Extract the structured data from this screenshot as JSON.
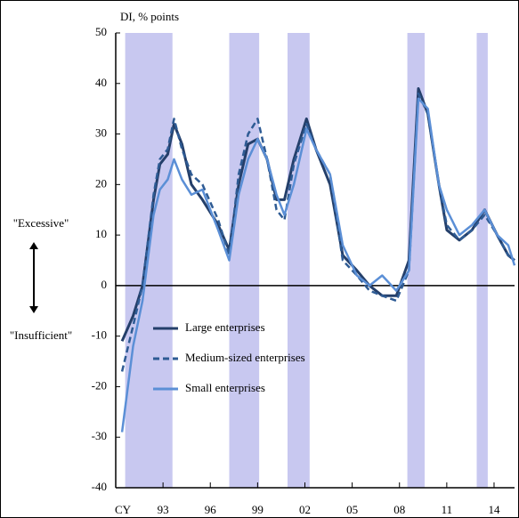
{
  "chart_data": {
    "type": "line",
    "y_label": "DI, % points",
    "x_label": "CY",
    "upper_note": "\"Excessive\"",
    "lower_note": "\"Insufficient\"",
    "x": [
      1990.4,
      1991.1,
      1991.7,
      1992.4,
      1992.8,
      1993.3,
      1993.7,
      1994.2,
      1994.8,
      1995.5,
      1996.5,
      1997.2,
      1997.8,
      1998.4,
      1999.0,
      1999.6,
      2000.2,
      2000.7,
      2001.3,
      2002.1,
      2002.7,
      2003.6,
      2004.4,
      2005.3,
      2006.1,
      2006.9,
      2007.8,
      2008.6,
      2009.2,
      2009.8,
      2010.5,
      2011.0,
      2011.8,
      2012.6,
      2013.4,
      2014.2,
      2014.9,
      2015.3
    ],
    "series": [
      {
        "name": "Large enterprises",
        "color": "#243f6a",
        "dashed": false,
        "values": [
          -11,
          -6,
          0,
          17,
          24,
          26,
          32,
          28,
          20,
          17,
          12,
          7,
          20,
          28,
          29,
          25,
          17,
          17,
          25,
          33,
          27,
          20,
          6,
          3,
          0,
          -2,
          -2,
          5,
          39,
          34,
          20,
          11,
          9,
          11,
          15,
          10,
          6,
          5
        ]
      },
      {
        "name": "Medium-sized enterprises",
        "color": "#2e5b94",
        "dashed": true,
        "values": [
          -17,
          -8,
          0,
          18,
          25,
          27,
          33,
          27,
          22,
          20,
          13,
          6,
          22,
          30,
          33,
          25,
          15,
          13,
          24,
          32,
          27,
          22,
          5,
          2,
          -1,
          -2,
          -3,
          3,
          38,
          34,
          20,
          12,
          9,
          11,
          14,
          10,
          6,
          5
        ]
      },
      {
        "name": "Small enterprises",
        "color": "#5b8fd6",
        "dashed": false,
        "values": [
          -29,
          -12,
          -3,
          14,
          19,
          21,
          25,
          21,
          18,
          19,
          11,
          5,
          18,
          25,
          29,
          25,
          18,
          14,
          20,
          31,
          27,
          22,
          8,
          2,
          0,
          2,
          -1,
          3,
          37,
          35,
          20,
          15,
          10,
          12,
          15,
          10,
          8,
          4
        ]
      }
    ],
    "shaded_periods": [
      [
        1990.6,
        1993.6
      ],
      [
        1997.2,
        1999.1
      ],
      [
        2000.9,
        2002.3
      ],
      [
        2008.5,
        2009.6
      ],
      [
        2012.9,
        2013.6
      ]
    ],
    "shade_color": "#c8c8f0",
    "xlim": [
      1990,
      2015.3
    ],
    "xticks": [
      {
        "value": 1993,
        "label": "93"
      },
      {
        "value": 1996,
        "label": "96"
      },
      {
        "value": 1999,
        "label": "99"
      },
      {
        "value": 2002,
        "label": "02"
      },
      {
        "value": 2005,
        "label": "05"
      },
      {
        "value": 2008,
        "label": "08"
      },
      {
        "value": 2011,
        "label": "11"
      },
      {
        "value": 2014,
        "label": "14"
      }
    ],
    "ylim": [
      -40,
      50
    ],
    "yticks": [
      -40,
      -30,
      -20,
      -10,
      0,
      10,
      20,
      30,
      40,
      50
    ],
    "grid": false
  }
}
